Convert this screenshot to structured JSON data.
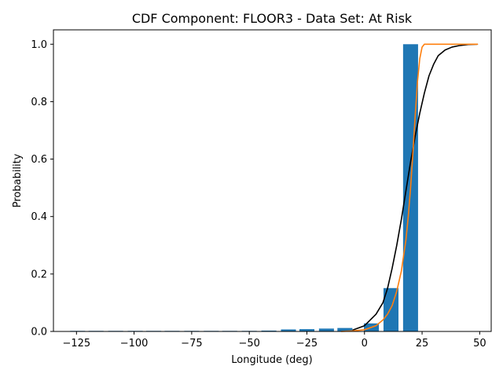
{
  "chart_data": {
    "type": "bar",
    "title": "CDF Component: FLOOR3 - Data Set: At Risk",
    "xlabel": "Longitude (deg)",
    "ylabel": "Probability",
    "xlim": [
      -135,
      55
    ],
    "ylim": [
      0,
      1.05
    ],
    "xticks": [
      -125,
      -100,
      -75,
      -50,
      -25,
      0,
      25,
      50
    ],
    "yticks": [
      0.0,
      0.2,
      0.4,
      0.6,
      0.8,
      1.0
    ],
    "xtick_labels": [
      "−125",
      "−100",
      "−75",
      "−50",
      "−25",
      "0",
      "25",
      "50"
    ],
    "ytick_labels": [
      "0.0",
      "0.2",
      "0.4",
      "0.6",
      "0.8",
      "1.0"
    ],
    "grid": false,
    "bar_width": 6.5,
    "bars": {
      "color": "#1f77b4",
      "x": [
        -124.5,
        -116.5,
        -108,
        -99.5,
        -91.5,
        -83.5,
        -75,
        -66.5,
        -58.5,
        -50,
        -41.5,
        -33,
        -25,
        -16.5,
        -8.5,
        3,
        11.5,
        20
      ],
      "values": [
        0.002,
        0.002,
        0.002,
        0.002,
        0.002,
        0.002,
        0.002,
        0.002,
        0.002,
        0.002,
        0.003,
        0.007,
        0.008,
        0.01,
        0.012,
        0.028,
        0.151,
        1.0
      ]
    },
    "series": [
      {
        "color": "#000000",
        "x": [
          -5,
          0,
          5,
          8,
          10,
          12,
          14,
          16,
          18,
          20,
          22,
          24,
          26,
          28,
          30,
          32,
          35,
          38,
          41,
          45,
          49
        ],
        "values": [
          0.005,
          0.02,
          0.06,
          0.1,
          0.15,
          0.22,
          0.3,
          0.39,
          0.49,
          0.59,
          0.68,
          0.76,
          0.83,
          0.89,
          0.93,
          0.96,
          0.98,
          0.99,
          0.995,
          0.999,
          1.0
        ]
      },
      {
        "color": "#ff7f0e",
        "x": [
          -10,
          -5,
          0,
          5,
          8,
          10,
          12,
          14,
          16,
          18,
          19,
          20,
          21,
          22,
          23,
          24,
          25,
          26,
          30,
          40,
          49
        ],
        "values": [
          0.0,
          0.002,
          0.006,
          0.02,
          0.04,
          0.06,
          0.09,
          0.14,
          0.21,
          0.32,
          0.4,
          0.5,
          0.62,
          0.75,
          0.87,
          0.95,
          0.99,
          1.0,
          1.0,
          1.0,
          1.0
        ]
      }
    ]
  }
}
